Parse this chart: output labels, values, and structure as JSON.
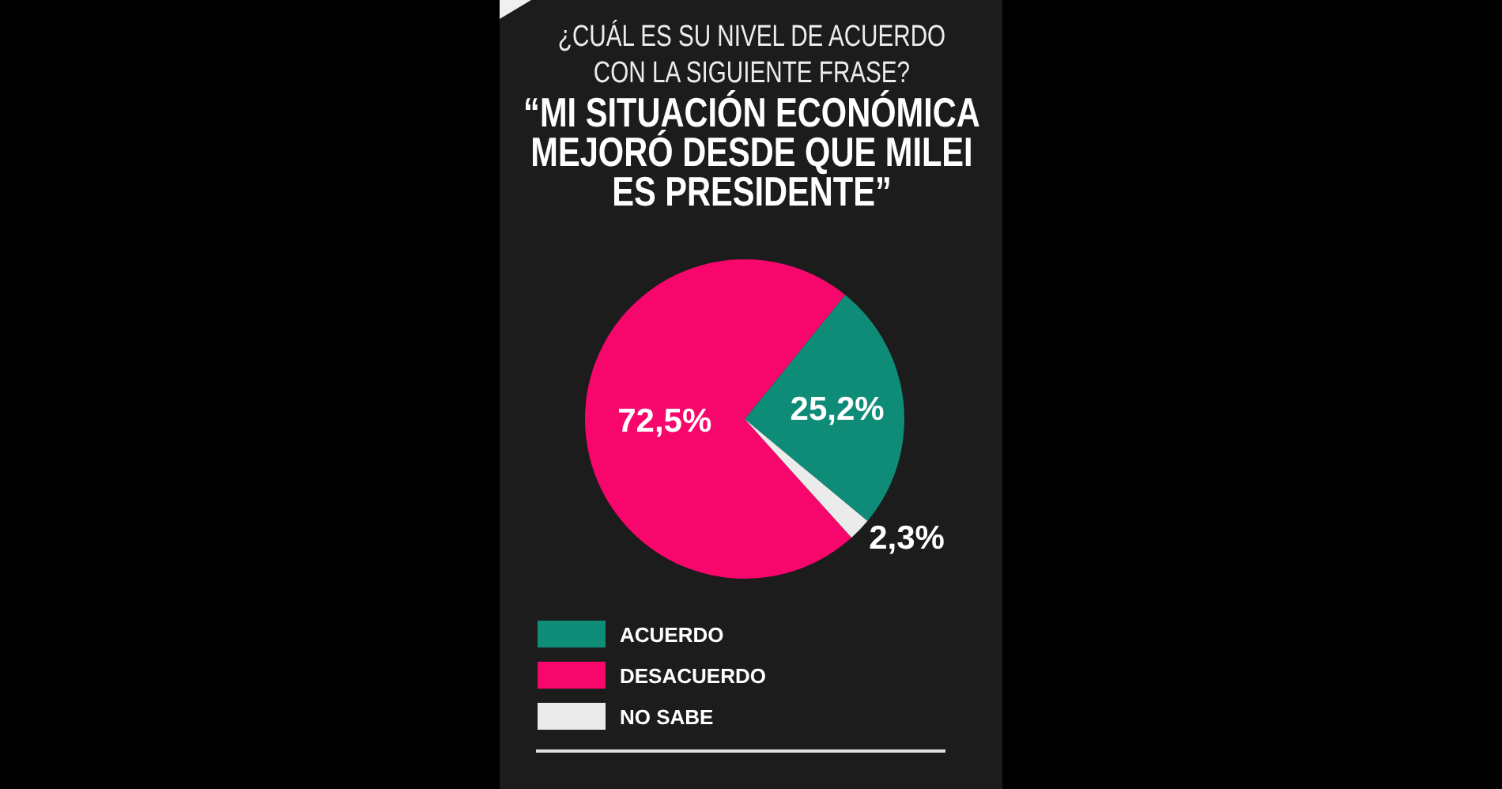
{
  "chart_data": {
    "type": "pie",
    "title": "¿CUÁL ES SU NIVEL DE ACUERDO CON LA SIGUIENTE FRASE?",
    "subtitle": "“MI SITUACIÓN ECONÓMICA MEJORÓ DESDE QUE MILEI ES PRESIDENTE”",
    "categories": [
      "ACUERDO",
      "DESACUERDO",
      "NO SABE"
    ],
    "values": [
      25.2,
      72.5,
      2.3
    ],
    "colors": [
      "#0e8c78",
      "#f7066c",
      "#ebebeb"
    ],
    "value_labels": [
      "25,2%",
      "72,5%",
      "2,3%"
    ],
    "legend": "bottom"
  }
}
